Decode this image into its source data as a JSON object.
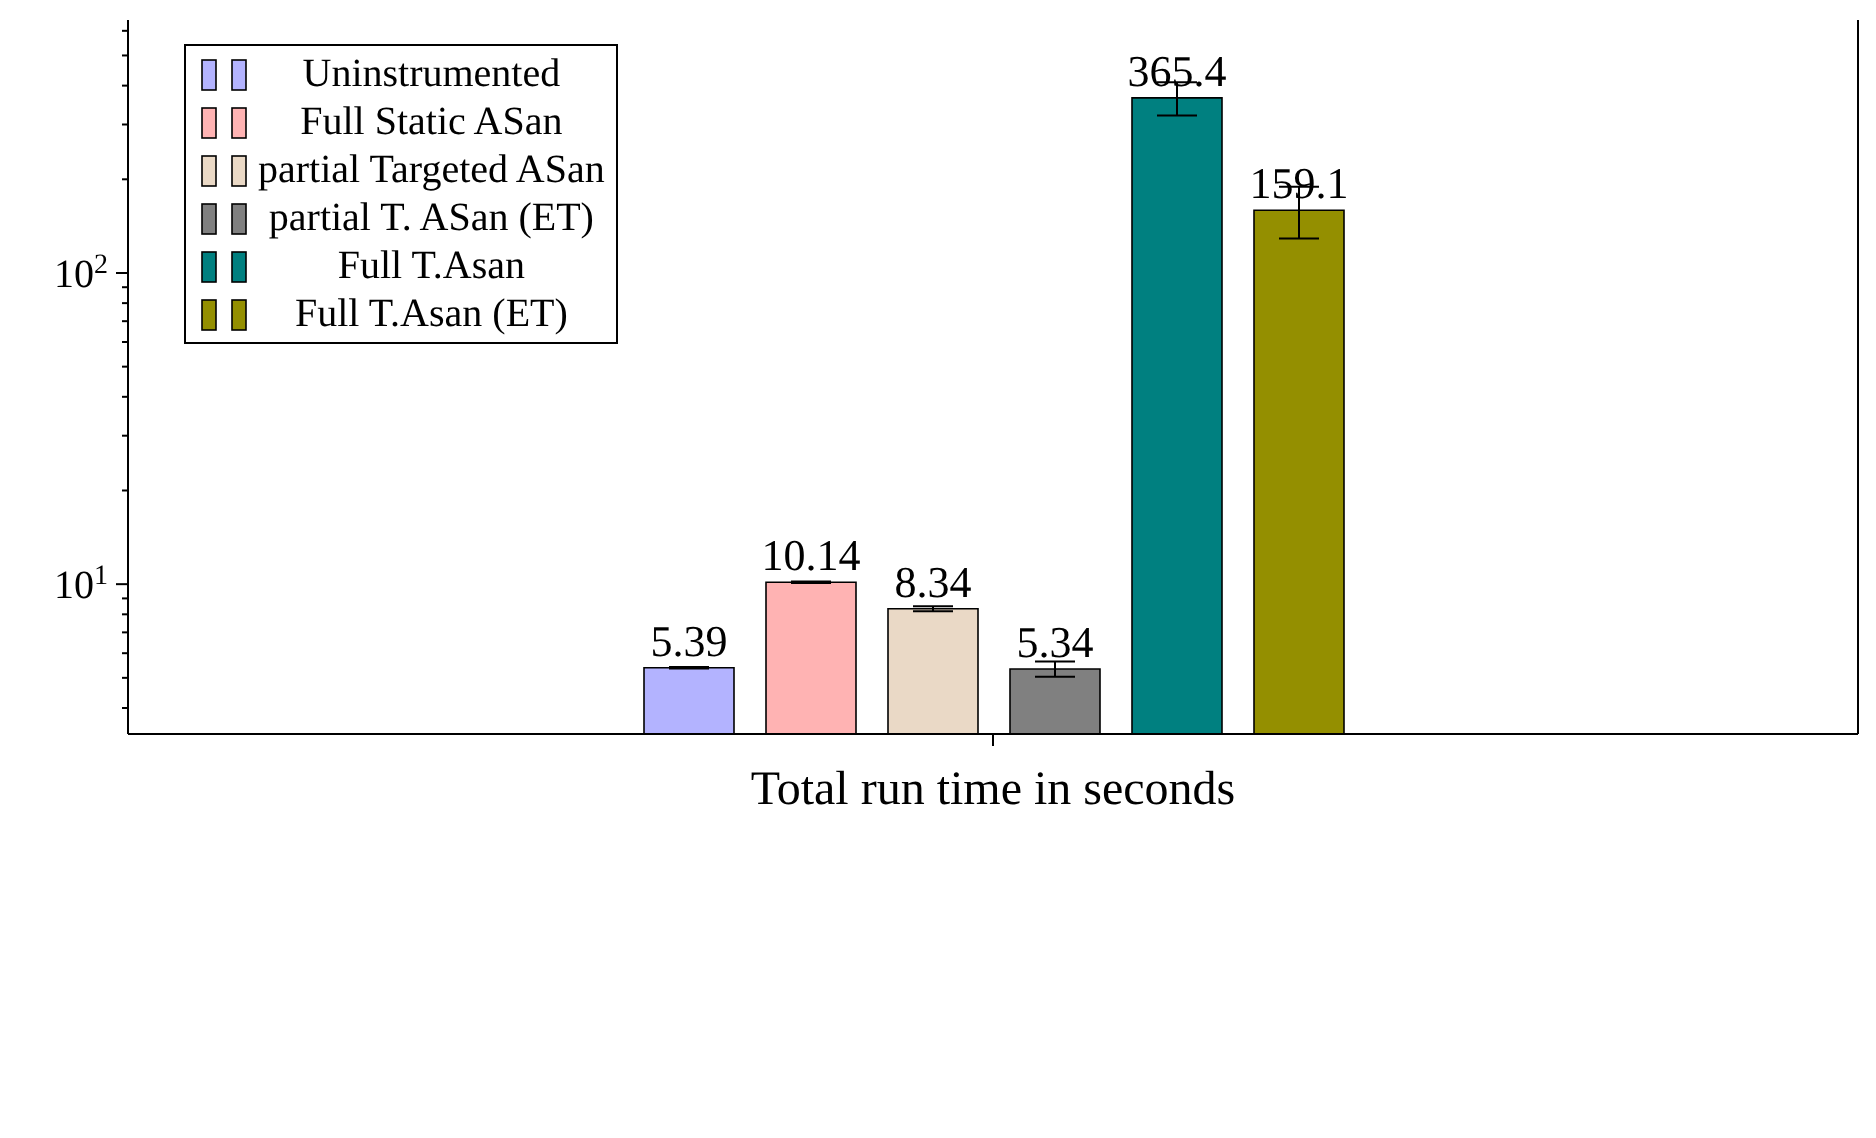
{
  "chart_data": {
    "type": "bar",
    "categories": [
      "Total run time in seconds"
    ],
    "series": [
      {
        "name": "Uninstrumented",
        "color": "#b3b3ff",
        "values": [
          5.39
        ],
        "errors": [
          0.03
        ]
      },
      {
        "name": "Full Static ASan",
        "color": "#ffb3b3",
        "values": [
          10.14
        ],
        "errors": [
          0.05
        ]
      },
      {
        "name": "partial Targeted ASan",
        "color": "#ead9c6",
        "values": [
          8.34
        ],
        "errors": [
          0.15
        ]
      },
      {
        "name": "partial T. ASan (ET)",
        "color": "#808080",
        "values": [
          5.34
        ],
        "errors": [
          0.3
        ]
      },
      {
        "name": "Full T.Asan",
        "color": "#008080",
        "values": [
          365.4
        ],
        "errors": [
          45
        ]
      },
      {
        "name": "Full T.Asan (ET)",
        "color": "#948f00",
        "values": [
          159.1
        ],
        "errors": [
          30
        ]
      }
    ],
    "log": true,
    "ylim": [
      3.3,
      650
    ],
    "yticks": [
      {
        "value": 4,
        "label": null
      },
      {
        "value": 5,
        "label": null
      },
      {
        "value": 6,
        "label": null
      },
      {
        "value": 7,
        "label": null
      },
      {
        "value": 8,
        "label": null
      },
      {
        "value": 9,
        "label": null
      },
      {
        "value": 10,
        "label": "10$^{1}$"
      },
      {
        "value": 20,
        "label": null
      },
      {
        "value": 30,
        "label": null
      },
      {
        "value": 40,
        "label": null
      },
      {
        "value": 50,
        "label": null
      },
      {
        "value": 60,
        "label": null
      },
      {
        "value": 70,
        "label": null
      },
      {
        "value": 80,
        "label": null
      },
      {
        "value": 90,
        "label": null
      },
      {
        "value": 100,
        "label": "10$^{2}$"
      },
      {
        "value": 200,
        "label": null
      },
      {
        "value": 300,
        "label": null
      },
      {
        "value": 400,
        "label": null
      },
      {
        "value": 500,
        "label": null
      },
      {
        "value": 600,
        "label": null
      }
    ],
    "data_labels": true,
    "legend": "top left",
    "grid": false
  }
}
